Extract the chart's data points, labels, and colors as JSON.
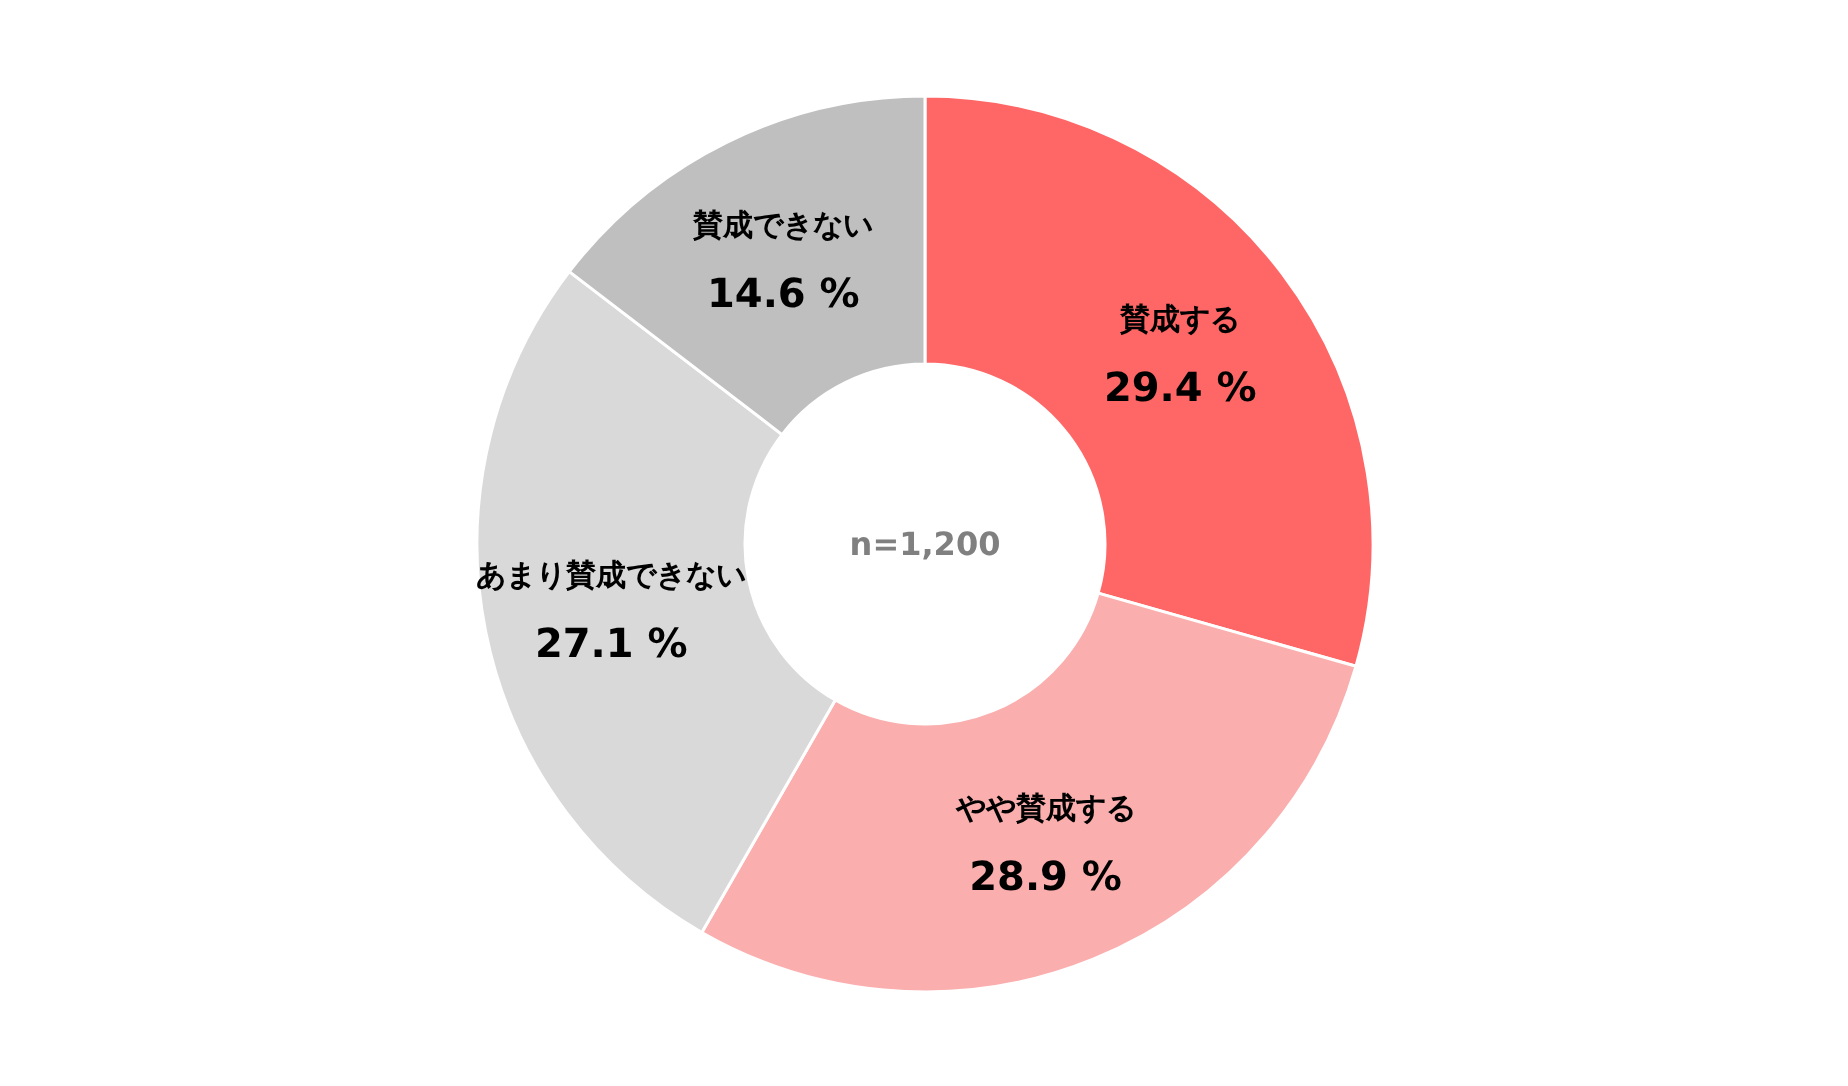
{
  "chart_data": {
    "type": "donut",
    "categories": [
      "賛成する",
      "やや賛成する",
      "あまり賛成できない",
      "賛成できない"
    ],
    "values": [
      29.4,
      28.9,
      27.1,
      14.6
    ],
    "value_labels": [
      "29.4 %",
      "28.9 %",
      "27.1 %",
      "14.6 %"
    ],
    "colors": [
      "#ff6666",
      "#fbaeae",
      "#d9d9d9",
      "#bfbfbf"
    ],
    "annotations": [
      "n=1,200"
    ]
  }
}
